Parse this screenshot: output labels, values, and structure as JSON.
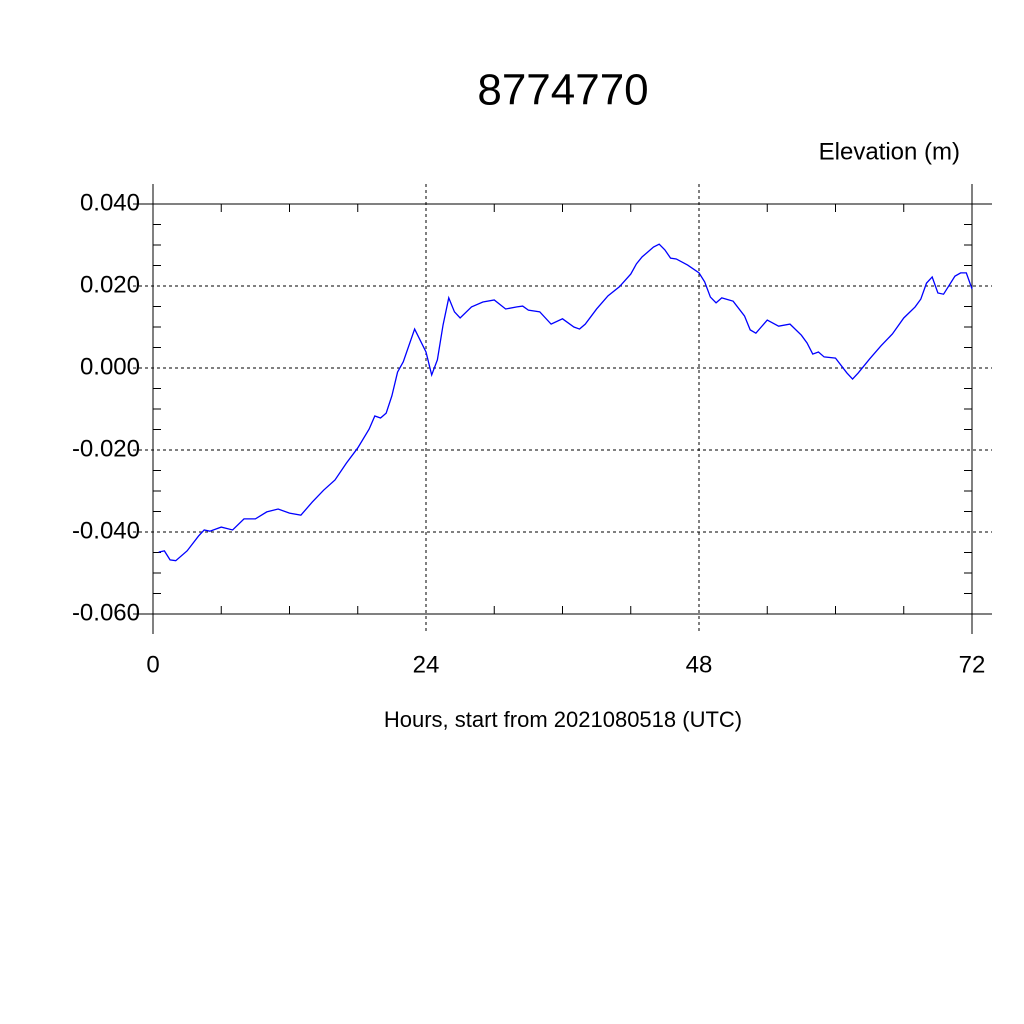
{
  "chart_data": {
    "type": "line",
    "title": "8774770",
    "ylabel": "Elevation (m)",
    "xlabel": "Hours, start from 2021080518 (UTC)",
    "xlim": [
      0,
      72
    ],
    "xticks": [
      0,
      24,
      48,
      72
    ],
    "ylim": [
      -0.06,
      0.04
    ],
    "yticks": [
      {
        "value": -0.06,
        "label": "-0.060"
      },
      {
        "value": -0.04,
        "label": "-0.040"
      },
      {
        "value": -0.02,
        "label": "-0.020"
      },
      {
        "value": 0,
        "label": "0.000"
      },
      {
        "value": 0.02,
        "label": "0.020"
      },
      {
        "value": 0.04,
        "label": "0.040"
      }
    ],
    "grid": true,
    "series": [
      {
        "color": "#0000ff",
        "x": [
          0.5,
          1,
          1.5,
          2,
          3,
          4,
          4.5,
          5,
          6,
          7,
          8,
          9,
          10,
          11,
          12,
          13,
          14,
          15,
          16,
          17,
          18,
          19,
          19.5,
          20,
          20.5,
          21,
          21.5,
          22,
          23,
          24,
          24.5,
          25,
          25.5,
          26,
          26.5,
          27,
          28,
          29,
          30,
          31,
          32,
          32.5,
          33,
          34,
          35,
          36,
          37,
          37.5,
          38,
          39,
          40,
          41,
          42,
          42.5,
          43,
          43.5,
          44,
          44.5,
          45,
          45.5,
          46,
          47,
          48,
          48.5,
          49,
          49.5,
          50,
          51,
          52,
          52.5,
          53,
          54,
          55,
          56,
          57,
          57.5,
          58,
          58.5,
          59,
          60,
          61,
          61.5,
          62,
          63,
          64,
          65,
          66,
          67,
          67.5,
          68,
          68.5,
          69,
          69.5,
          70,
          70.5,
          71,
          71.5,
          72
        ],
        "values": [
          -0.0449,
          -0.0446,
          -0.0468,
          -0.047,
          -0.0446,
          -0.041,
          -0.0395,
          -0.0398,
          -0.0388,
          -0.0395,
          -0.0368,
          -0.0368,
          -0.0351,
          -0.0344,
          -0.0354,
          -0.0359,
          -0.0327,
          -0.0298,
          -0.0273,
          -0.0232,
          -0.0195,
          -0.0149,
          -0.0117,
          -0.0122,
          -0.011,
          -0.0068,
          -0.001,
          0.0015,
          0.0095,
          0.0039,
          -0.0017,
          0.002,
          0.0105,
          0.0171,
          0.0137,
          0.0122,
          0.0149,
          0.0161,
          0.0166,
          0.0144,
          0.0149,
          0.0151,
          0.0141,
          0.0137,
          0.0107,
          0.012,
          0.01,
          0.0095,
          0.0107,
          0.0144,
          0.0176,
          0.0198,
          0.0229,
          0.0254,
          0.0271,
          0.0283,
          0.0295,
          0.0302,
          0.0288,
          0.0268,
          0.0266,
          0.0251,
          0.0232,
          0.021,
          0.0173,
          0.0159,
          0.0171,
          0.0163,
          0.0127,
          0.0093,
          0.0085,
          0.0117,
          0.0102,
          0.0107,
          0.008,
          0.0061,
          0.0034,
          0.0039,
          0.0027,
          0.0024,
          -0.0012,
          -0.0027,
          -0.0012,
          0.0022,
          0.0054,
          0.0083,
          0.0122,
          0.0149,
          0.0168,
          0.0207,
          0.0222,
          0.0183,
          0.018,
          0.0202,
          0.0224,
          0.0232,
          0.0232,
          0.0193
        ]
      }
    ]
  }
}
